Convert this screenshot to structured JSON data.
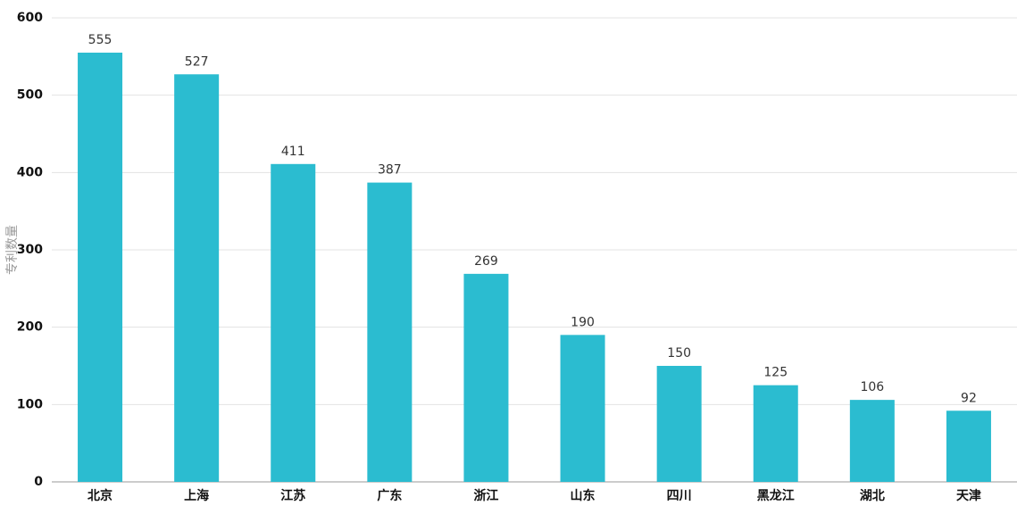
{
  "chart_data": {
    "type": "bar",
    "y_label": "专利数量",
    "categories": [
      "北京",
      "上海",
      "江苏",
      "广东",
      "浙江",
      "山东",
      "四川",
      "黑龙江",
      "湖北",
      "天津"
    ],
    "values": [
      555,
      527,
      411,
      387,
      269,
      190,
      150,
      125,
      106,
      92
    ],
    "color": "#2bbcd0",
    "ylim": [
      0,
      600
    ],
    "yticks": [
      0,
      100,
      200,
      300,
      400,
      500,
      600
    ],
    "grid": true
  }
}
